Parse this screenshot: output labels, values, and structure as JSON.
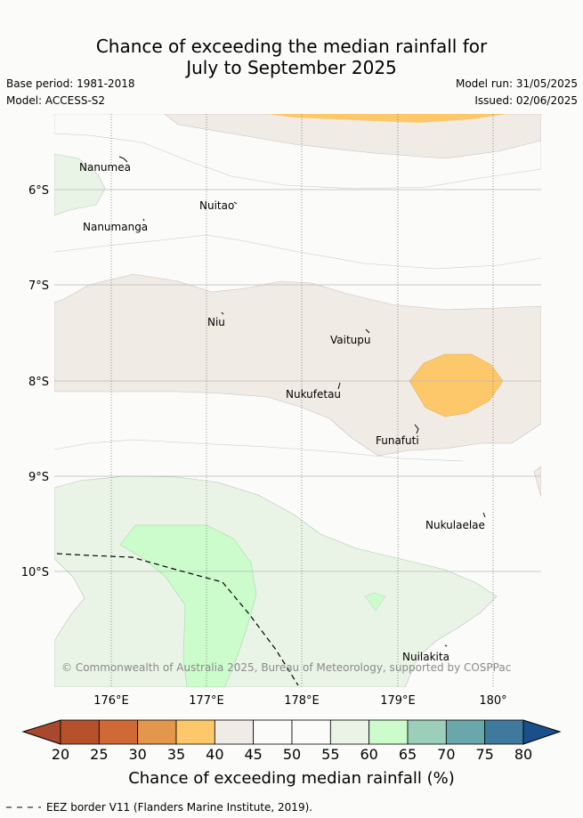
{
  "title_line1": "Chance of exceeding the median rainfall for",
  "title_line2": "July to September 2025",
  "base_period": "Base period: 1981-2018",
  "model": "Model: ACCESS-S2",
  "model_run": "Model run: 31/05/2025",
  "issued": "Issued: 02/06/2025",
  "copyright": "© Commonwealth of Australia 2025, Bureau of Meteorology, supported by COSPPac",
  "axes": {
    "lat_labels": [
      "6°S",
      "7°S",
      "8°S",
      "9°S",
      "10°S"
    ],
    "lon_labels": [
      "176°E",
      "177°E",
      "178°E",
      "179°E",
      "180°"
    ]
  },
  "islands": [
    {
      "name": "Nanumea"
    },
    {
      "name": "Nuitao"
    },
    {
      "name": "Nanumanga"
    },
    {
      "name": "Niu"
    },
    {
      "name": "Vaitupu"
    },
    {
      "name": "Nukufetau"
    },
    {
      "name": "Funafuti"
    },
    {
      "name": "Nukulaelae"
    },
    {
      "name": "Nuilakita"
    }
  ],
  "colorbar": {
    "title": "Chance of exceeding median rainfall (%)",
    "ticks": [
      "20",
      "25",
      "30",
      "35",
      "40",
      "45",
      "50",
      "55",
      "60",
      "65",
      "70",
      "75",
      "80"
    ],
    "colors": [
      "#b5512b",
      "#cf6a36",
      "#e3974c",
      "#fdc869",
      "#f1ebe5",
      "#fbfcfa",
      "#fbfcfa",
      "#e9f4e6",
      "#ccfccc",
      "#9ccfb9",
      "#6aa7ab",
      "#3f7a9c"
    ],
    "under_color": "#a8492d",
    "over_color": "#1a4f8a"
  },
  "legend": {
    "eez_label": "EEZ border V11 (Flanders Marine Institute, 2019)."
  }
}
